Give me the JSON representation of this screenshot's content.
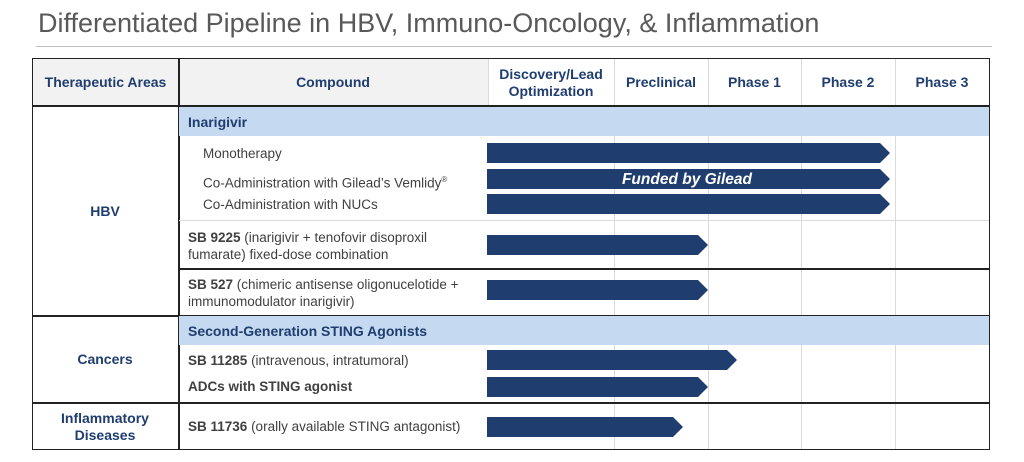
{
  "title": "Differentiated Pipeline in HBV, Immuno-Oncology, & Inflammation",
  "header": {
    "therapeutic_areas": "Therapeutic Areas",
    "compound": "Compound",
    "discovery": "Discovery/Lead Optimization",
    "preclinical": "Preclinical",
    "phase1": "Phase 1",
    "phase2": "Phase 2",
    "phase3": "Phase 3"
  },
  "areas": {
    "hbv": "HBV",
    "cancers": "Cancers",
    "inflammatory": "Inflammatory Diseases"
  },
  "hbv": {
    "band_label": "Inarigivir",
    "monotherapy": "Monotherapy",
    "coadmin_vemlidy": "Co-Administration with Gilead’s Vemlidy",
    "coadmin_vemlidy_mark": "®",
    "coadmin_nucs": "Co-Administration with NUCs",
    "funded_label": "Funded by Gilead",
    "sb9225_name": "SB 9225",
    "sb9225_desc": " (inarigivir + tenofovir disoproxil fumarate) fixed-dose combination",
    "sb527_name": "SB 527",
    "sb527_desc": " (chimeric antisense oligonucelotide + immunomodulator inarigivir)"
  },
  "cancers": {
    "band_label": "Second-Generation STING Agonists",
    "sb11285_name": "SB 11285",
    "sb11285_desc": " (intravenous, intratumoral)",
    "adc_name": "ADCs with STING agonist"
  },
  "inflammatory": {
    "sb11736_name": "SB 11736",
    "sb11736_desc": " (orally available STING antagonist)"
  },
  "colors": {
    "arrow": "#1f3d6e",
    "band": "#c5d9f1",
    "header_bg": "#f2f2f2",
    "header_text": "#1f3d6e"
  }
}
